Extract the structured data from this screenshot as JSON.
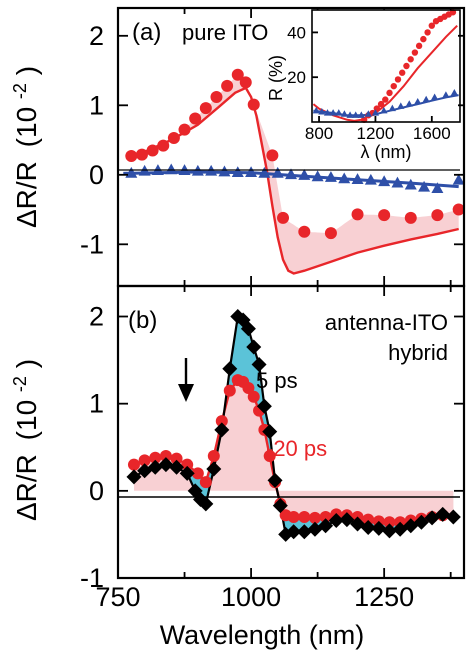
{
  "figure": {
    "xlabel": "Wavelength (nm)",
    "x_ticks": [
      "750",
      "1000",
      "1250"
    ],
    "panel_a": {
      "label": "(a)",
      "annotation": "pure ITO",
      "ylabel_main": "ΔR/R",
      "ylabel_unit": "(10",
      "ylabel_exp": "-2",
      "ylabel_close": ")",
      "y_ticks": [
        "2",
        "1",
        "0",
        "-1"
      ]
    },
    "panel_b": {
      "label": "(b)",
      "annotation_line1": "antenna-ITO",
      "annotation_line2": "hybrid",
      "label_5ps": "5 ps",
      "label_20ps": "-20 ps",
      "ylabel_main": "ΔR/R",
      "ylabel_unit": "(10",
      "ylabel_exp": "-2",
      "ylabel_close": ")",
      "y_ticks": [
        "2",
        "1",
        "0",
        "-1"
      ]
    },
    "inset": {
      "ylabel": "R (%)",
      "xlabel": "λ (nm)",
      "y_ticks": [
        "40",
        "20"
      ],
      "x_ticks": [
        "800",
        "1200",
        "1600"
      ]
    }
  },
  "colors": {
    "red": "#e8262a",
    "blue": "#2e4fa8",
    "pink_fill": "#f8d0d3",
    "cyan_fill": "#5bc3d8",
    "black": "#000000"
  },
  "chart_data": [
    {
      "type": "line",
      "panel": "a",
      "xlim": [
        750,
        1400
      ],
      "ylim": [
        -1.6,
        2.4
      ],
      "series": [
        {
          "role": "red-points",
          "marker": "circle",
          "points": [
            [
              775,
              0.27
            ],
            [
              795,
              0.29
            ],
            [
              815,
              0.35
            ],
            [
              835,
              0.42
            ],
            [
              855,
              0.53
            ],
            [
              875,
              0.65
            ],
            [
              895,
              0.81
            ],
            [
              915,
              0.96
            ],
            [
              935,
              1.12
            ],
            [
              955,
              1.28
            ],
            [
              975,
              1.44
            ],
            [
              990,
              1.33
            ],
            [
              1005,
              1.01
            ],
            [
              1040,
              0.28
            ],
            [
              1060,
              -0.62
            ],
            [
              1100,
              -0.82
            ],
            [
              1150,
              -0.84
            ],
            [
              1200,
              -0.57
            ],
            [
              1250,
              -0.58
            ],
            [
              1300,
              -0.62
            ],
            [
              1350,
              -0.58
            ],
            [
              1390,
              -0.5
            ]
          ]
        },
        {
          "role": "red-model",
          "marker": "line",
          "points": [
            [
              770,
              0.22
            ],
            [
              800,
              0.33
            ],
            [
              850,
              0.5
            ],
            [
              900,
              0.72
            ],
            [
              940,
              0.98
            ],
            [
              970,
              1.18
            ],
            [
              990,
              1.25
            ],
            [
              1000,
              1.12
            ],
            [
              1010,
              0.85
            ],
            [
              1020,
              0.45
            ],
            [
              1030,
              0.05
            ],
            [
              1040,
              -0.45
            ],
            [
              1050,
              -0.9
            ],
            [
              1060,
              -1.22
            ],
            [
              1070,
              -1.38
            ],
            [
              1080,
              -1.42
            ],
            [
              1100,
              -1.38
            ],
            [
              1150,
              -1.25
            ],
            [
              1200,
              -1.12
            ],
            [
              1250,
              -1.02
            ],
            [
              1300,
              -0.93
            ],
            [
              1350,
              -0.85
            ],
            [
              1390,
              -0.78
            ]
          ]
        },
        {
          "role": "blue-points",
          "marker": "triangle",
          "points": [
            [
              775,
              0.02
            ],
            [
              800,
              0.05
            ],
            [
              825,
              0.06
            ],
            [
              850,
              0.07
            ],
            [
              875,
              0.06
            ],
            [
              900,
              0.05
            ],
            [
              925,
              0.05
            ],
            [
              950,
              0.04
            ],
            [
              975,
              0.03
            ],
            [
              1000,
              0.03
            ],
            [
              1025,
              0.02
            ],
            [
              1050,
              0.02
            ],
            [
              1075,
              0.0
            ],
            [
              1100,
              -0.01
            ],
            [
              1125,
              -0.03
            ],
            [
              1150,
              -0.04
            ],
            [
              1175,
              -0.06
            ],
            [
              1200,
              -0.07
            ],
            [
              1225,
              -0.08
            ],
            [
              1250,
              -0.1
            ],
            [
              1275,
              -0.12
            ],
            [
              1300,
              -0.15
            ],
            [
              1325,
              -0.18
            ],
            [
              1350,
              -0.2
            ],
            [
              1390,
              -0.08
            ]
          ]
        },
        {
          "role": "blue-model",
          "marker": "line",
          "points": [
            [
              760,
              0.02
            ],
            [
              900,
              0.04
            ],
            [
              1000,
              0.03
            ],
            [
              1100,
              -0.02
            ],
            [
              1200,
              -0.07
            ],
            [
              1300,
              -0.12
            ],
            [
              1390,
              -0.17
            ]
          ]
        }
      ]
    },
    {
      "type": "line",
      "panel": "inset",
      "xlim": [
        750,
        1800
      ],
      "ylim": [
        0,
        50
      ],
      "series": [
        {
          "role": "red-points",
          "marker": "circle",
          "points": [
            [
              1120,
              1
            ],
            [
              1150,
              3
            ],
            [
              1180,
              4
            ],
            [
              1210,
              6
            ],
            [
              1240,
              8
            ],
            [
              1270,
              10
            ],
            [
              1300,
              13
            ],
            [
              1330,
              16
            ],
            [
              1360,
              19
            ],
            [
              1390,
              22
            ],
            [
              1420,
              25
            ],
            [
              1450,
              28
            ],
            [
              1480,
              31
            ],
            [
              1510,
              34
            ],
            [
              1540,
              37
            ],
            [
              1570,
              40
            ],
            [
              1600,
              43
            ],
            [
              1630,
              45
            ],
            [
              1660,
              46
            ],
            [
              1690,
              47
            ],
            [
              1720,
              48
            ],
            [
              1750,
              49
            ]
          ]
        },
        {
          "role": "red-model",
          "marker": "line",
          "points": [
            [
              760,
              8
            ],
            [
              800,
              6
            ],
            [
              900,
              3
            ],
            [
              1000,
              1
            ],
            [
              1050,
              0.5
            ],
            [
              1100,
              1
            ],
            [
              1200,
              4
            ],
            [
              1300,
              9
            ],
            [
              1400,
              16
            ],
            [
              1500,
              24
            ],
            [
              1600,
              31
            ],
            [
              1700,
              38
            ],
            [
              1780,
              43
            ]
          ]
        },
        {
          "role": "blue-points",
          "marker": "triangle",
          "points": [
            [
              780,
              5
            ],
            [
              820,
              4.5
            ],
            [
              860,
              4
            ],
            [
              900,
              4
            ],
            [
              940,
              4
            ],
            [
              980,
              3.5
            ],
            [
              1020,
              3
            ],
            [
              1060,
              3
            ],
            [
              1100,
              3
            ],
            [
              1150,
              3.5
            ],
            [
              1200,
              4
            ],
            [
              1260,
              5
            ],
            [
              1320,
              6
            ],
            [
              1380,
              7
            ],
            [
              1440,
              8
            ],
            [
              1500,
              9
            ],
            [
              1560,
              10
            ],
            [
              1620,
              11
            ],
            [
              1700,
              12
            ],
            [
              1760,
              13
            ]
          ]
        },
        {
          "role": "blue-model",
          "marker": "line",
          "points": [
            [
              760,
              5
            ],
            [
              900,
              4
            ],
            [
              1000,
              3
            ],
            [
              1100,
              3
            ],
            [
              1200,
              3.5
            ],
            [
              1300,
              5
            ],
            [
              1400,
              6.5
            ],
            [
              1500,
              8
            ],
            [
              1600,
              9.5
            ],
            [
              1700,
              11
            ],
            [
              1790,
              12
            ]
          ]
        }
      ]
    },
    {
      "type": "line",
      "panel": "b",
      "xlim": [
        750,
        1400
      ],
      "ylim": [
        -1.0,
        2.35
      ],
      "series": [
        {
          "name": "5 ps",
          "marker": "diamond",
          "points": [
            [
              780,
              0.16
            ],
            [
              800,
              0.23
            ],
            [
              820,
              0.27
            ],
            [
              840,
              0.3
            ],
            [
              860,
              0.27
            ],
            [
              880,
              0.2
            ],
            [
              895,
              0.0
            ],
            [
              905,
              -0.1
            ],
            [
              915,
              -0.15
            ],
            [
              930,
              0.25
            ],
            [
              945,
              0.7
            ],
            [
              960,
              1.4
            ],
            [
              975,
              2.0
            ],
            [
              985,
              1.96
            ],
            [
              995,
              1.86
            ],
            [
              1005,
              1.65
            ],
            [
              1015,
              1.45
            ],
            [
              1025,
              0.97
            ],
            [
              1035,
              0.68
            ],
            [
              1045,
              0.12
            ],
            [
              1055,
              -0.17
            ],
            [
              1065,
              -0.5
            ],
            [
              1080,
              -0.47
            ],
            [
              1100,
              -0.47
            ],
            [
              1120,
              -0.44
            ],
            [
              1140,
              -0.4
            ],
            [
              1160,
              -0.34
            ],
            [
              1180,
              -0.33
            ],
            [
              1200,
              -0.38
            ],
            [
              1220,
              -0.42
            ],
            [
              1240,
              -0.43
            ],
            [
              1260,
              -0.46
            ],
            [
              1280,
              -0.44
            ],
            [
              1300,
              -0.4
            ],
            [
              1320,
              -0.36
            ],
            [
              1340,
              -0.31
            ],
            [
              1360,
              -0.27
            ],
            [
              1380,
              -0.3
            ]
          ]
        },
        {
          "name": "-20 ps",
          "marker": "circle",
          "points": [
            [
              780,
              0.3
            ],
            [
              800,
              0.35
            ],
            [
              820,
              0.38
            ],
            [
              840,
              0.4
            ],
            [
              860,
              0.37
            ],
            [
              880,
              0.3
            ],
            [
              900,
              0.2
            ],
            [
              915,
              0.1
            ],
            [
              930,
              0.4
            ],
            [
              945,
              0.8
            ],
            [
              960,
              1.15
            ],
            [
              975,
              1.27
            ],
            [
              985,
              1.25
            ],
            [
              995,
              1.18
            ],
            [
              1005,
              1.08
            ],
            [
              1015,
              0.92
            ],
            [
              1025,
              0.7
            ],
            [
              1035,
              0.4
            ],
            [
              1045,
              0.1
            ],
            [
              1055,
              -0.15
            ],
            [
              1065,
              -0.28
            ],
            [
              1080,
              -0.3
            ],
            [
              1100,
              -0.3
            ],
            [
              1120,
              -0.31
            ],
            [
              1140,
              -0.3
            ],
            [
              1160,
              -0.27
            ],
            [
              1180,
              -0.28
            ],
            [
              1200,
              -0.3
            ],
            [
              1220,
              -0.33
            ],
            [
              1240,
              -0.35
            ],
            [
              1260,
              -0.36
            ],
            [
              1280,
              -0.36
            ],
            [
              1300,
              -0.34
            ],
            [
              1320,
              -0.32
            ],
            [
              1340,
              -0.3
            ],
            [
              1360,
              -0.28
            ]
          ]
        }
      ]
    }
  ]
}
